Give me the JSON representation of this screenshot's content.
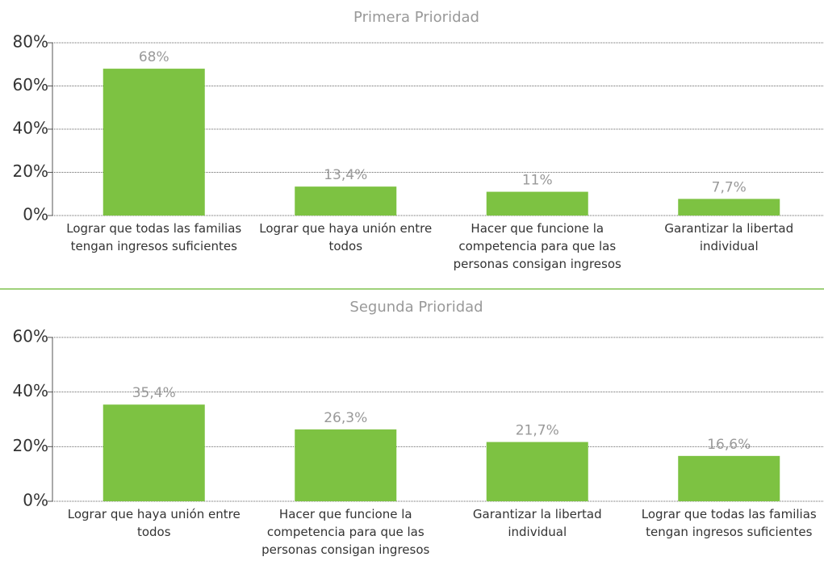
{
  "chart_data": [
    {
      "type": "bar",
      "title": "Primera Prioridad",
      "categories": [
        "Lograr que todas las familias tengan ingresos suficientes",
        "Lograr que haya unión entre todos",
        "Hacer que funcione la competencia para que las personas consigan ingresos",
        "Garantizar la libertad individual"
      ],
      "values": [
        68,
        13.4,
        11,
        7.7
      ],
      "value_labels": [
        "68%",
        "13,4%",
        "11%",
        "7,7%"
      ],
      "color": "#7dc242",
      "ylim": [
        0,
        80
      ],
      "yticks": [
        {
          "value": 0,
          "label": "0%"
        },
        {
          "value": 20,
          "label": "20%"
        },
        {
          "value": 40,
          "label": "40%"
        },
        {
          "value": 60,
          "label": "60%"
        },
        {
          "value": 80,
          "label": "80%"
        }
      ],
      "grid": true
    },
    {
      "type": "bar",
      "title": "Segunda Prioridad",
      "categories": [
        "Lograr que haya unión entre todos",
        "Hacer que funcione la competencia para que las personas consigan ingresos",
        "Garantizar la libertad individual",
        "Lograr que todas las familias tengan ingresos suficientes"
      ],
      "values": [
        35.4,
        26.3,
        21.7,
        16.6
      ],
      "value_labels": [
        "35,4%",
        "26,3%",
        "21,7%",
        "16,6%"
      ],
      "color": "#7dc242",
      "ylim": [
        0,
        60
      ],
      "yticks": [
        {
          "value": 0,
          "label": "0%"
        },
        {
          "value": 20,
          "label": "20%"
        },
        {
          "value": 40,
          "label": "40%"
        },
        {
          "value": 60,
          "label": "60%"
        }
      ],
      "grid": true
    }
  ]
}
